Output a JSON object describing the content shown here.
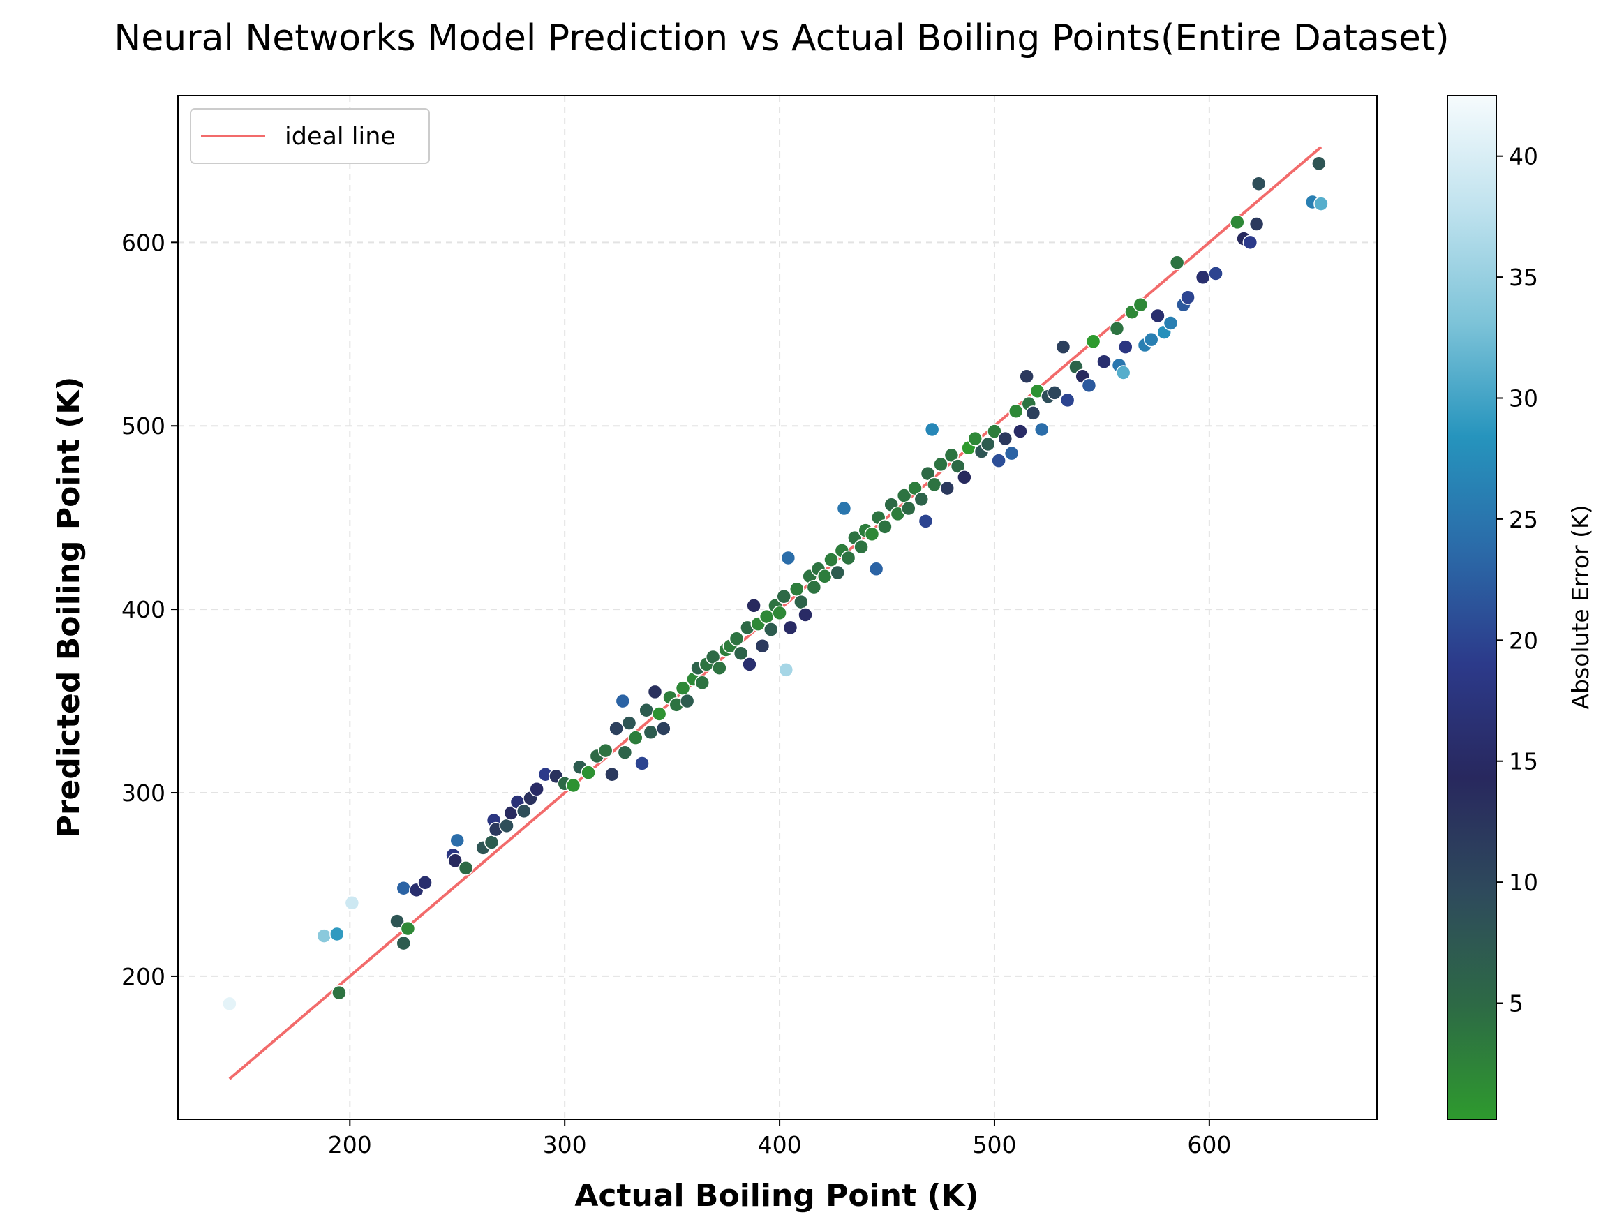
{
  "chart_data": {
    "type": "scatter",
    "title": "Neural Networks Model Prediction vs Actual Boiling Points(Entire Dataset)",
    "xlabel": "Actual Boiling Point (K)",
    "ylabel": "Predicted Boiling Point (K)",
    "xlim": [
      120,
      678
    ],
    "ylim": [
      122,
      680
    ],
    "xticks": [
      200,
      300,
      400,
      500,
      600
    ],
    "yticks": [
      200,
      300,
      400,
      500,
      600
    ],
    "grid": true,
    "legend": {
      "position": "top-left",
      "entries": [
        {
          "label": "ideal line",
          "color": "#f26b6b"
        }
      ]
    },
    "ideal_line": {
      "x": [
        144,
        652
      ],
      "y": [
        144,
        652
      ],
      "color": "#f26b6b"
    },
    "colorbar": {
      "label": "Absolute Error (K)",
      "range": [
        0.2,
        42.5
      ],
      "ticks": [
        5,
        10,
        15,
        20,
        25,
        30,
        35,
        40
      ],
      "colors": [
        "#2e9a2e",
        "#2d6a45",
        "#2e4a5c",
        "#28285e",
        "#2c3a8a",
        "#2b6aa8",
        "#2694bd",
        "#7dc3d8",
        "#bfe2ee",
        "#f6fbfd"
      ]
    },
    "points": [
      [
        144,
        185,
        41
      ],
      [
        188,
        222,
        34
      ],
      [
        194,
        223,
        29
      ],
      [
        195,
        191,
        4
      ],
      [
        201,
        240,
        39
      ],
      [
        222,
        230,
        8
      ],
      [
        225,
        218,
        7
      ],
      [
        225,
        248,
        23
      ],
      [
        227,
        226,
        2
      ],
      [
        231,
        247,
        16
      ],
      [
        235,
        251,
        16
      ],
      [
        248,
        266,
        18
      ],
      [
        249,
        263,
        14
      ],
      [
        250,
        274,
        24
      ],
      [
        254,
        259,
        5
      ],
      [
        262,
        270,
        8
      ],
      [
        266,
        273,
        7
      ],
      [
        267,
        285,
        18
      ],
      [
        268,
        280,
        12
      ],
      [
        273,
        282,
        9
      ],
      [
        275,
        289,
        14
      ],
      [
        278,
        295,
        17
      ],
      [
        281,
        290,
        9
      ],
      [
        284,
        297,
        13
      ],
      [
        287,
        302,
        15
      ],
      [
        291,
        310,
        19
      ],
      [
        296,
        309,
        13
      ],
      [
        300,
        305,
        5
      ],
      [
        304,
        304,
        1
      ],
      [
        307,
        314,
        7
      ],
      [
        311,
        311,
        1
      ],
      [
        315,
        320,
        5
      ],
      [
        319,
        323,
        4
      ],
      [
        322,
        310,
        12
      ],
      [
        324,
        335,
        11
      ],
      [
        327,
        350,
        23
      ],
      [
        328,
        322,
        6
      ],
      [
        330,
        338,
        8
      ],
      [
        333,
        330,
        3
      ],
      [
        336,
        316,
        20
      ],
      [
        338,
        345,
        7
      ],
      [
        340,
        333,
        7
      ],
      [
        342,
        355,
        13
      ],
      [
        344,
        343,
        1
      ],
      [
        346,
        335,
        11
      ],
      [
        349,
        352,
        3
      ],
      [
        352,
        348,
        4
      ],
      [
        355,
        357,
        2
      ],
      [
        357,
        350,
        7
      ],
      [
        360,
        362,
        2
      ],
      [
        362,
        368,
        6
      ],
      [
        364,
        360,
        4
      ],
      [
        366,
        370,
        4
      ],
      [
        369,
        374,
        5
      ],
      [
        372,
        368,
        4
      ],
      [
        375,
        378,
        3
      ],
      [
        377,
        380,
        3
      ],
      [
        380,
        384,
        4
      ],
      [
        382,
        376,
        6
      ],
      [
        385,
        390,
        5
      ],
      [
        386,
        370,
        16
      ],
      [
        388,
        402,
        14
      ],
      [
        390,
        392,
        2
      ],
      [
        392,
        380,
        12
      ],
      [
        394,
        396,
        2
      ],
      [
        396,
        389,
        7
      ],
      [
        398,
        402,
        4
      ],
      [
        400,
        398,
        2
      ],
      [
        402,
        407,
        5
      ],
      [
        403,
        367,
        36
      ],
      [
        404,
        428,
        24
      ],
      [
        405,
        390,
        15
      ],
      [
        408,
        411,
        3
      ],
      [
        410,
        404,
        6
      ],
      [
        412,
        397,
        15
      ],
      [
        414,
        418,
        4
      ],
      [
        416,
        412,
        4
      ],
      [
        418,
        422,
        4
      ],
      [
        421,
        418,
        3
      ],
      [
        424,
        427,
        3
      ],
      [
        427,
        420,
        7
      ],
      [
        429,
        432,
        3
      ],
      [
        430,
        455,
        25
      ],
      [
        432,
        428,
        4
      ],
      [
        435,
        439,
        4
      ],
      [
        438,
        434,
        4
      ],
      [
        440,
        443,
        3
      ],
      [
        443,
        441,
        2
      ],
      [
        445,
        422,
        23
      ],
      [
        446,
        450,
        4
      ],
      [
        449,
        445,
        4
      ],
      [
        452,
        457,
        5
      ],
      [
        455,
        452,
        3
      ],
      [
        458,
        462,
        4
      ],
      [
        460,
        455,
        5
      ],
      [
        463,
        466,
        3
      ],
      [
        466,
        460,
        6
      ],
      [
        468,
        448,
        20
      ],
      [
        469,
        474,
        5
      ],
      [
        471,
        498,
        27
      ],
      [
        472,
        468,
        4
      ],
      [
        475,
        479,
        4
      ],
      [
        478,
        466,
        12
      ],
      [
        480,
        484,
        4
      ],
      [
        483,
        478,
        5
      ],
      [
        486,
        472,
        14
      ],
      [
        488,
        488,
        0
      ],
      [
        491,
        493,
        2
      ],
      [
        494,
        486,
        8
      ],
      [
        497,
        490,
        7
      ],
      [
        500,
        497,
        3
      ],
      [
        502,
        481,
        21
      ],
      [
        505,
        493,
        12
      ],
      [
        508,
        485,
        23
      ],
      [
        510,
        508,
        2
      ],
      [
        512,
        497,
        15
      ],
      [
        515,
        527,
        12
      ],
      [
        516,
        512,
        4
      ],
      [
        518,
        507,
        11
      ],
      [
        520,
        519,
        1
      ],
      [
        522,
        498,
        24
      ],
      [
        525,
        516,
        9
      ],
      [
        528,
        518,
        10
      ],
      [
        532,
        543,
        11
      ],
      [
        534,
        514,
        20
      ],
      [
        538,
        532,
        6
      ],
      [
        541,
        527,
        14
      ],
      [
        544,
        522,
        22
      ],
      [
        546,
        546,
        0
      ],
      [
        551,
        535,
        16
      ],
      [
        557,
        553,
        4
      ],
      [
        558,
        533,
        25
      ],
      [
        560,
        529,
        31
      ],
      [
        561,
        543,
        18
      ],
      [
        564,
        562,
        2
      ],
      [
        568,
        566,
        2
      ],
      [
        570,
        544,
        26
      ],
      [
        573,
        547,
        26
      ],
      [
        576,
        560,
        16
      ],
      [
        579,
        551,
        28
      ],
      [
        582,
        556,
        26
      ],
      [
        585,
        589,
        4
      ],
      [
        588,
        566,
        22
      ],
      [
        590,
        570,
        20
      ],
      [
        597,
        581,
        16
      ],
      [
        603,
        583,
        20
      ],
      [
        613,
        611,
        2
      ],
      [
        616,
        602,
        14
      ],
      [
        619,
        600,
        19
      ],
      [
        622,
        610,
        12
      ],
      [
        623,
        632,
        9
      ],
      [
        648,
        622,
        26
      ],
      [
        651,
        643,
        8
      ],
      [
        652,
        621,
        31
      ]
    ]
  }
}
